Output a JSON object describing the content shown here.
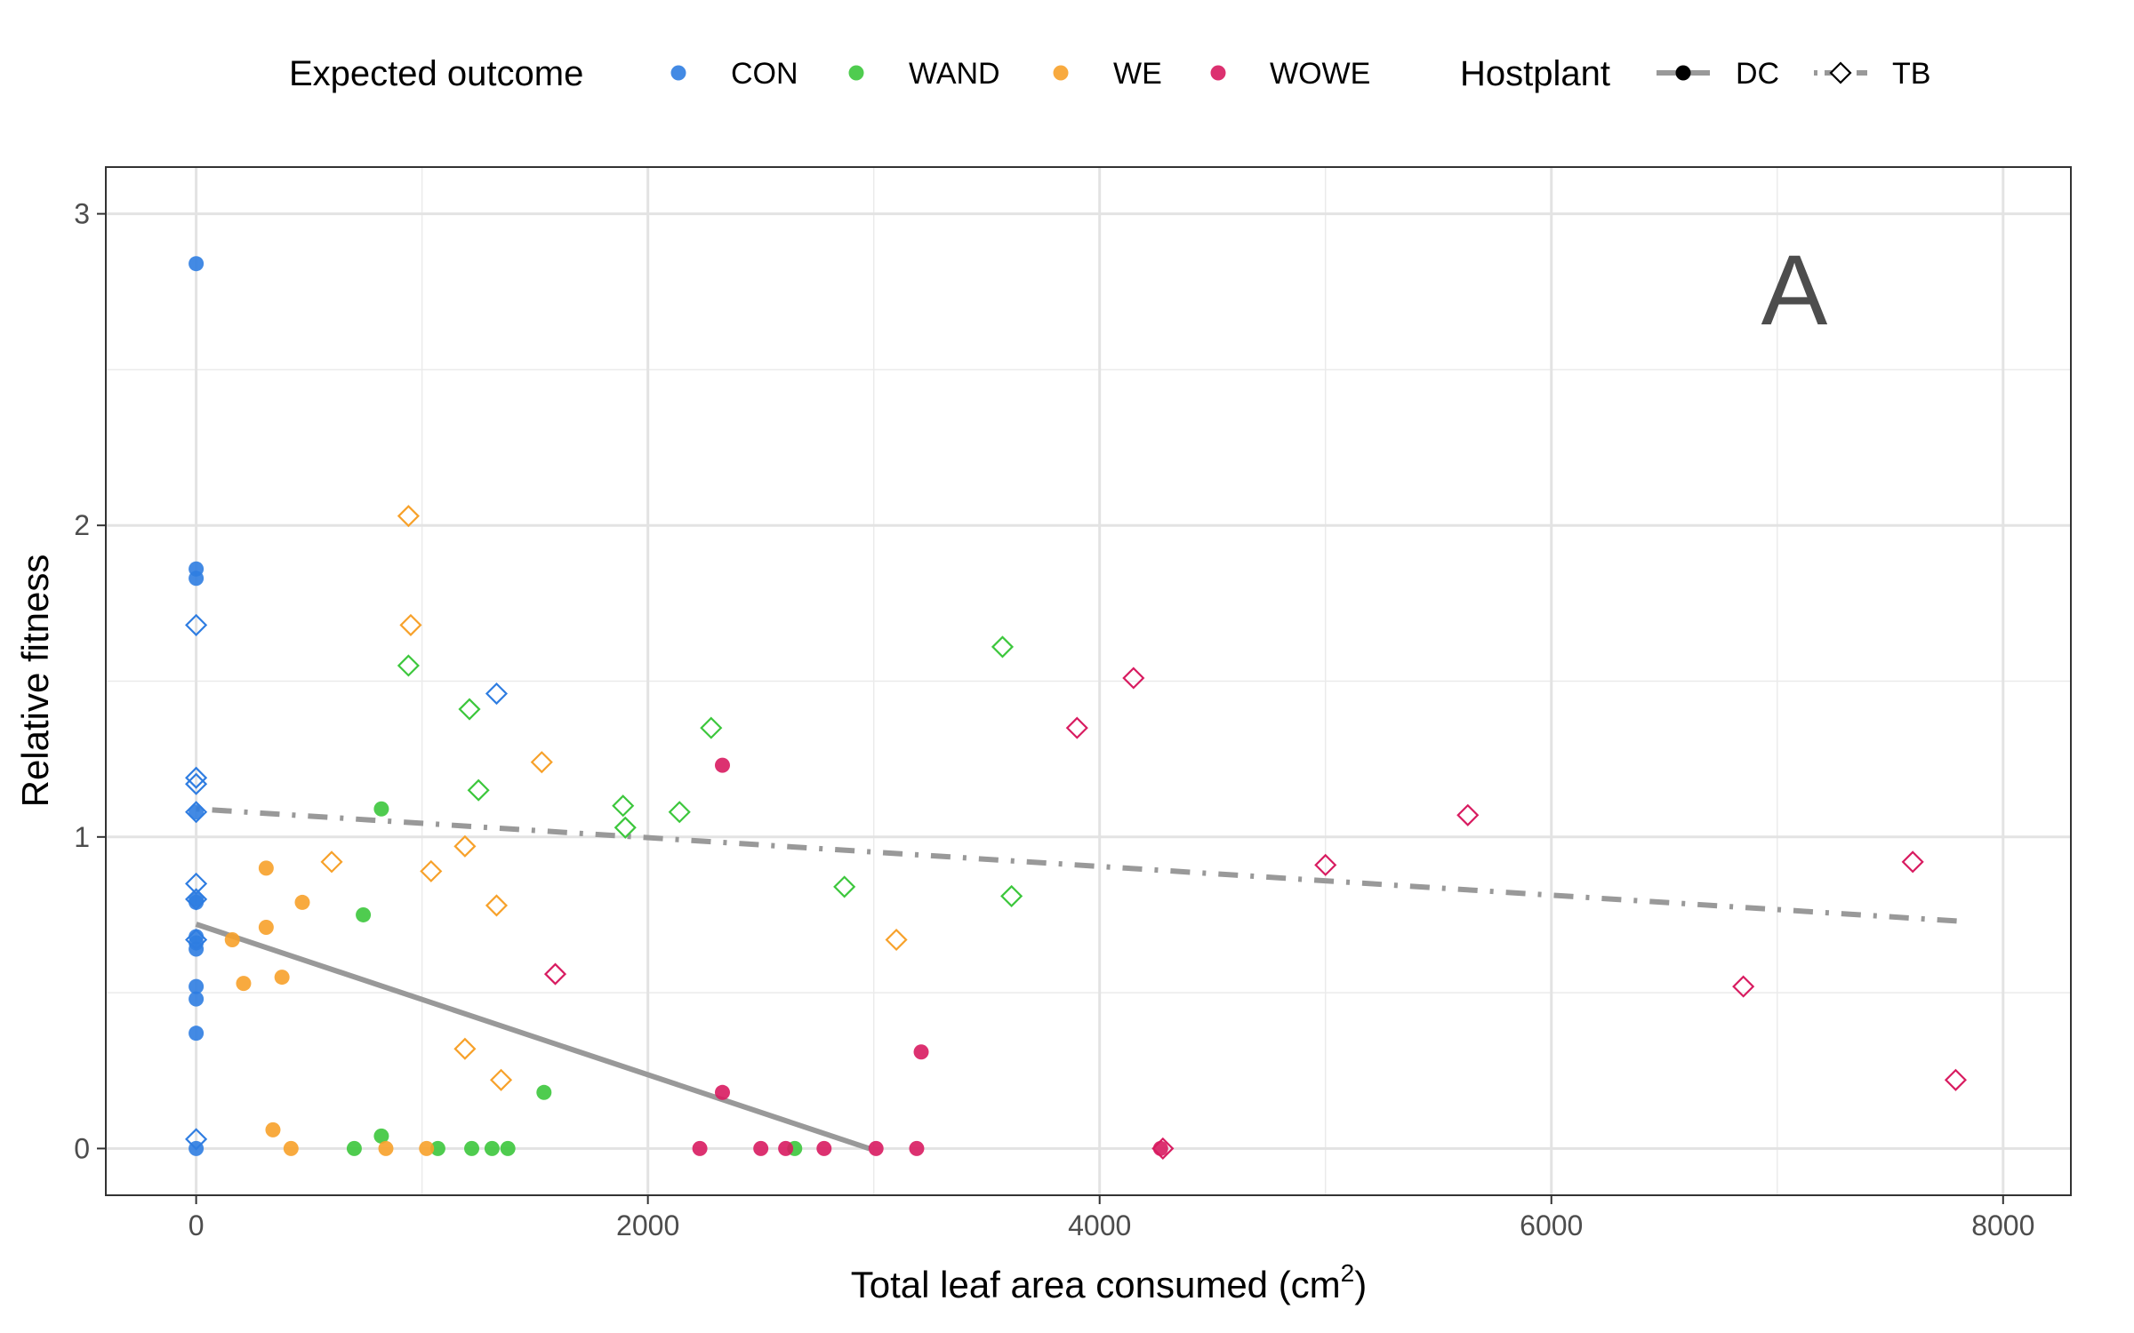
{
  "chart_data": {
    "type": "scatter",
    "panel_label": "A",
    "xlabel": "Total leaf area consumed (cm",
    "xlabel_sup": "2",
    "xlabel_end": ")",
    "ylabel": "Relative fitness",
    "xlim": [
      -400,
      8300
    ],
    "ylim": [
      -0.15,
      3.15
    ],
    "x_ticks": [
      0,
      2000,
      4000,
      6000,
      8000
    ],
    "x_tick_labels": [
      "0",
      "2000",
      "4000",
      "6000",
      "8000"
    ],
    "y_ticks": [
      0,
      1,
      2,
      3
    ],
    "y_tick_labels": [
      "0",
      "1",
      "2",
      "3"
    ],
    "x_minor_ticks": [
      1000,
      3000,
      5000,
      7000
    ],
    "y_minor_ticks": [
      0.5,
      1.5,
      2.5
    ],
    "grid": true,
    "legend_position": "top",
    "legend": {
      "color_title": "Expected outcome",
      "color_entries": [
        {
          "label": "CON",
          "color": "#2f7de1"
        },
        {
          "label": "WAND",
          "color": "#3cc73c"
        },
        {
          "label": "WE",
          "color": "#f7a12a"
        },
        {
          "label": "WOWE",
          "color": "#d81b60"
        }
      ],
      "shape_title": "Hostplant",
      "shape_entries": [
        {
          "label": "DC",
          "shape": "filled-circle",
          "line": "solid"
        },
        {
          "label": "TB",
          "shape": "open-diamond",
          "line": "dotdash"
        }
      ]
    },
    "trend_lines": [
      {
        "hostplant": "DC",
        "style": "solid",
        "color": "#999999",
        "x": [
          0,
          2980
        ],
        "y": [
          0.72,
          0.0
        ]
      },
      {
        "hostplant": "TB",
        "style": "dotdash",
        "color": "#999999",
        "x": [
          0,
          7800
        ],
        "y": [
          1.09,
          0.73
        ]
      }
    ],
    "series": [
      {
        "outcome": "CON",
        "hostplant": "DC",
        "points": [
          [
            0,
            2.84
          ],
          [
            0,
            1.86
          ],
          [
            0,
            1.83
          ],
          [
            0,
            1.08
          ],
          [
            0,
            0.8
          ],
          [
            0,
            0.79
          ],
          [
            0,
            0.68
          ],
          [
            0,
            0.66
          ],
          [
            0,
            0.64
          ],
          [
            0,
            0.52
          ],
          [
            0,
            0.48
          ],
          [
            0,
            0.37
          ],
          [
            0,
            0.0
          ]
        ]
      },
      {
        "outcome": "CON",
        "hostplant": "TB",
        "points": [
          [
            0,
            1.68
          ],
          [
            0,
            1.19
          ],
          [
            0,
            1.17
          ],
          [
            0,
            1.08
          ],
          [
            0,
            0.85
          ],
          [
            0,
            0.8
          ],
          [
            0,
            0.67
          ],
          [
            0,
            0.03
          ],
          [
            1330,
            1.46
          ]
        ]
      },
      {
        "outcome": "WAND",
        "hostplant": "DC",
        "points": [
          [
            820,
            1.09
          ],
          [
            740,
            0.75
          ],
          [
            1540,
            0.18
          ],
          [
            820,
            0.04
          ],
          [
            700,
            0.0
          ],
          [
            1070,
            0.0
          ],
          [
            1220,
            0.0
          ],
          [
            1310,
            0.0
          ],
          [
            1380,
            0.0
          ],
          [
            2650,
            0.0
          ]
        ]
      },
      {
        "outcome": "WAND",
        "hostplant": "TB",
        "points": [
          [
            940,
            1.55
          ],
          [
            1210,
            1.41
          ],
          [
            1250,
            1.15
          ],
          [
            1890,
            1.1
          ],
          [
            1900,
            1.03
          ],
          [
            2140,
            1.08
          ],
          [
            2280,
            1.35
          ],
          [
            2870,
            0.84
          ],
          [
            3570,
            1.61
          ],
          [
            3610,
            0.81
          ]
        ]
      },
      {
        "outcome": "WE",
        "hostplant": "DC",
        "points": [
          [
            160,
            0.67
          ],
          [
            210,
            0.53
          ],
          [
            310,
            0.9
          ],
          [
            310,
            0.71
          ],
          [
            380,
            0.55
          ],
          [
            470,
            0.79
          ],
          [
            340,
            0.06
          ],
          [
            420,
            0.0
          ],
          [
            840,
            0.0
          ],
          [
            1020,
            0.0
          ]
        ]
      },
      {
        "outcome": "WE",
        "hostplant": "TB",
        "points": [
          [
            940,
            2.03
          ],
          [
            950,
            1.68
          ],
          [
            600,
            0.92
          ],
          [
            1040,
            0.89
          ],
          [
            1190,
            0.97
          ],
          [
            1330,
            0.78
          ],
          [
            1190,
            0.32
          ],
          [
            1350,
            0.22
          ],
          [
            1530,
            1.24
          ],
          [
            3100,
            0.67
          ]
        ]
      },
      {
        "outcome": "WOWE",
        "hostplant": "DC",
        "points": [
          [
            2330,
            1.23
          ],
          [
            2330,
            0.18
          ],
          [
            3210,
            0.31
          ],
          [
            2230,
            0.0
          ],
          [
            2500,
            0.0
          ],
          [
            2610,
            0.0
          ],
          [
            2780,
            0.0
          ],
          [
            3010,
            0.0
          ],
          [
            3190,
            0.0
          ],
          [
            4270,
            0.0
          ]
        ]
      },
      {
        "outcome": "WOWE",
        "hostplant": "TB",
        "points": [
          [
            1590,
            0.56
          ],
          [
            3900,
            1.35
          ],
          [
            4150,
            1.51
          ],
          [
            4280,
            0.0
          ],
          [
            5000,
            0.91
          ],
          [
            5630,
            1.07
          ],
          [
            6850,
            0.52
          ],
          [
            7600,
            0.92
          ],
          [
            7790,
            0.22
          ]
        ]
      }
    ]
  }
}
